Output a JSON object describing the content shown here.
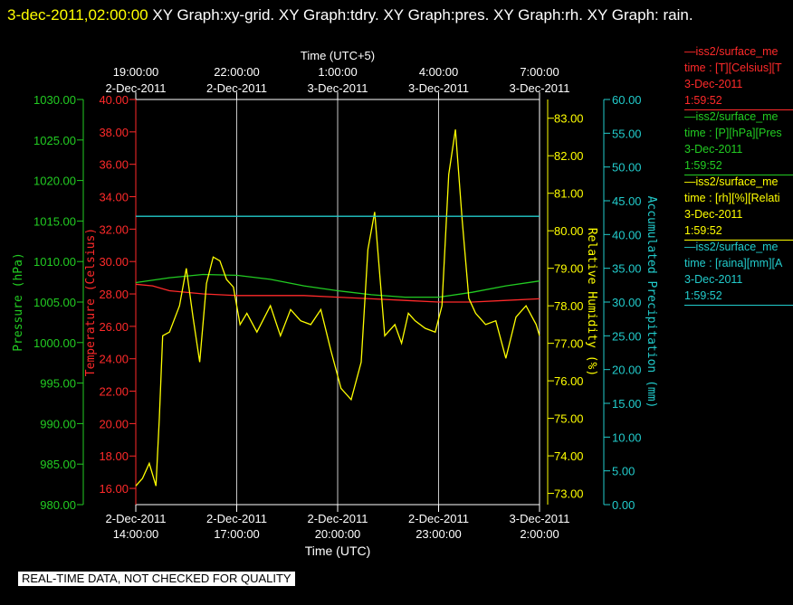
{
  "title": {
    "timestamp": "3-dec-2011,02:00:00",
    "rest": " XY Graph:xy-grid.  XY Graph:tdry.  XY Graph:pres.  XY Graph:rh.  XY Graph: rain."
  },
  "footer": "REAL-TIME DATA, NOT CHECKED FOR QUALITY",
  "colors": {
    "temperature": "#ff2a2a",
    "pressure": "#22cc22",
    "humidity": "#ffff00",
    "precip": "#22cccc",
    "grid": "#c8c8c8",
    "axis": "#ffffff"
  },
  "legend": [
    {
      "line1": "—iss2/surface_me",
      "line2": "time : [T][Celsius][T",
      "line3": "3-Dec-2011",
      "line4": "1:59:52",
      "color": "#ff2a2a"
    },
    {
      "line1": "—iss2/surface_me",
      "line2": "time : [P][hPa][Pres",
      "line3": "3-Dec-2011",
      "line4": "1:59:52",
      "color": "#22cc22"
    },
    {
      "line1": "—iss2/surface_me",
      "line2": "time : [rh][%][Relati",
      "line3": "3-Dec-2011",
      "line4": "1:59:52",
      "color": "#ffff00"
    },
    {
      "line1": "—iss2/surface_me",
      "line2": "time : [raina][mm][A",
      "line3": "3-Dec-2011",
      "line4": "1:59:52",
      "color": "#22cccc"
    }
  ],
  "chart_data": {
    "type": "line",
    "xlabel_bottom": "Time (UTC)",
    "xlabel_top": "Time (UTC+5)",
    "x_range_hours_utc": [
      14,
      26
    ],
    "bottom_ticks": [
      {
        "date": "2-Dec-2011",
        "time": "14:00:00"
      },
      {
        "date": "2-Dec-2011",
        "time": "17:00:00"
      },
      {
        "date": "2-Dec-2011",
        "time": "20:00:00"
      },
      {
        "date": "2-Dec-2011",
        "time": "23:00:00"
      },
      {
        "date": "3-Dec-2011",
        "time": "2:00:00"
      }
    ],
    "top_ticks": [
      {
        "time": "19:00:00",
        "date": "2-Dec-2011"
      },
      {
        "time": "22:00:00",
        "date": "2-Dec-2011"
      },
      {
        "time": "1:00:00",
        "date": "3-Dec-2011"
      },
      {
        "time": "4:00:00",
        "date": "3-Dec-2011"
      },
      {
        "time": "7:00:00",
        "date": "3-Dec-2011"
      }
    ],
    "axes": {
      "pressure": {
        "label": "Pressure (hPa)",
        "range": [
          980,
          1030
        ],
        "ticks": [
          "980.00",
          "985.00",
          "990.00",
          "995.00",
          "1000.00",
          "1005.00",
          "1010.00",
          "1015.00",
          "1020.00",
          "1025.00",
          "1030.00"
        ]
      },
      "temperature": {
        "label": "Temperature (Celsius)",
        "range": [
          15,
          40
        ],
        "ticks": [
          "16.00",
          "18.00",
          "20.00",
          "22.00",
          "24.00",
          "26.00",
          "28.00",
          "30.00",
          "32.00",
          "34.00",
          "36.00",
          "38.00",
          "40.00"
        ]
      },
      "humidity": {
        "label": "Relative Humidity (%)",
        "range": [
          72.7,
          83.5
        ],
        "ticks": [
          "73.00",
          "74.00",
          "75.00",
          "76.00",
          "77.00",
          "78.00",
          "79.00",
          "80.00",
          "81.00",
          "82.00",
          "83.00"
        ]
      },
      "precip": {
        "label": "Accumulated Precipitation (mm)",
        "range": [
          0,
          60
        ],
        "ticks": [
          "0.00",
          "5.00",
          "10.00",
          "15.00",
          "20.00",
          "25.00",
          "30.00",
          "35.00",
          "40.00",
          "45.00",
          "50.00",
          "55.00",
          "60.00"
        ]
      }
    },
    "series": [
      {
        "name": "tdry",
        "axis": "temperature",
        "x": [
          14.0,
          14.5,
          15.0,
          16.0,
          17.0,
          18.0,
          19.0,
          20.0,
          21.0,
          22.0,
          23.0,
          24.0,
          25.0,
          26.0
        ],
        "y": [
          28.6,
          28.5,
          28.2,
          28.0,
          27.9,
          27.9,
          27.9,
          27.8,
          27.7,
          27.6,
          27.5,
          27.5,
          27.6,
          27.7
        ]
      },
      {
        "name": "pres",
        "axis": "pressure",
        "x": [
          14.0,
          15.0,
          16.0,
          17.0,
          18.0,
          19.0,
          20.0,
          21.0,
          22.0,
          23.0,
          24.0,
          25.0,
          26.0
        ],
        "y": [
          1007.4,
          1008.0,
          1008.4,
          1008.3,
          1007.8,
          1007.0,
          1006.4,
          1005.9,
          1005.6,
          1005.6,
          1006.2,
          1007.0,
          1007.6
        ]
      },
      {
        "name": "rh",
        "axis": "humidity",
        "x": [
          14.0,
          14.2,
          14.4,
          14.6,
          14.7,
          14.8,
          15.0,
          15.3,
          15.5,
          15.7,
          15.9,
          16.1,
          16.3,
          16.5,
          16.7,
          16.9,
          17.1,
          17.3,
          17.6,
          18.0,
          18.3,
          18.6,
          18.9,
          19.2,
          19.5,
          19.8,
          20.1,
          20.4,
          20.7,
          20.9,
          21.1,
          21.4,
          21.7,
          21.9,
          22.1,
          22.3,
          22.6,
          22.9,
          23.1,
          23.3,
          23.5,
          23.7,
          23.9,
          24.1,
          24.4,
          24.7,
          25.0,
          25.3,
          25.6,
          25.9,
          26.0
        ],
        "y": [
          73.2,
          73.4,
          73.8,
          73.2,
          75.0,
          77.2,
          77.3,
          78.0,
          79.0,
          77.7,
          76.5,
          78.6,
          79.3,
          79.2,
          78.7,
          78.5,
          77.5,
          77.8,
          77.3,
          78.0,
          77.2,
          77.9,
          77.6,
          77.5,
          77.9,
          76.8,
          75.8,
          75.5,
          76.5,
          79.5,
          80.5,
          77.2,
          77.5,
          77.0,
          77.8,
          77.6,
          77.4,
          77.3,
          78.0,
          81.5,
          82.7,
          80.3,
          78.2,
          77.8,
          77.5,
          77.6,
          76.6,
          77.7,
          78.0,
          77.5,
          77.2
        ]
      },
      {
        "name": "raina",
        "axis": "precip",
        "x": [
          14.0,
          26.0
        ],
        "y": [
          42.7,
          42.7
        ]
      }
    ]
  }
}
